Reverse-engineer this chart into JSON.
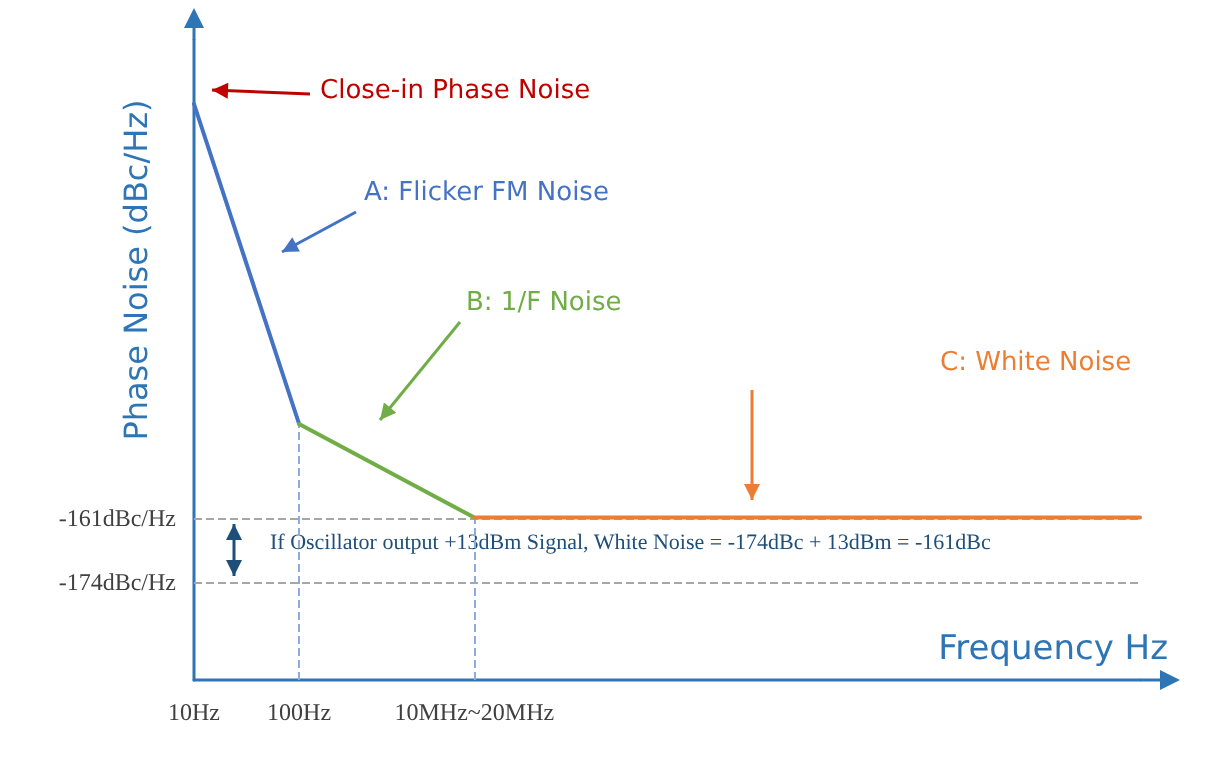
{
  "chart_data": {
    "type": "line",
    "xlabel": "Frequency Hz",
    "ylabel": "Phase Noise (dBc/Hz)",
    "categories": [
      "10Hz",
      null,
      null,
      "100Hz",
      null,
      null,
      null,
      null,
      "10MHz~20MHz",
      null,
      null,
      null,
      null,
      null,
      null,
      null,
      null,
      null,
      null,
      null,
      null,
      null,
      null,
      null,
      null,
      null,
      null,
      null
    ],
    "series": [
      {
        "color": "#4472c4",
        "values": [
          -77,
          null,
          null,
          -142,
          null,
          null,
          null,
          null,
          null,
          null,
          null,
          null,
          null,
          null,
          null,
          null,
          null,
          null,
          null,
          null,
          null,
          null,
          null,
          null,
          null,
          null,
          null,
          null
        ]
      },
      {
        "color": "#70ad47",
        "values": [
          null,
          null,
          null,
          -142,
          null,
          null,
          null,
          null,
          -161,
          null,
          null,
          null,
          null,
          null,
          null,
          null,
          null,
          null,
          null,
          null,
          null,
          null,
          null,
          null,
          null,
          null,
          null,
          null
        ]
      },
      {
        "color": "#ed7d31",
        "values": [
          null,
          null,
          null,
          null,
          null,
          null,
          null,
          null,
          -161,
          null,
          null,
          null,
          null,
          null,
          null,
          null,
          null,
          null,
          null,
          null,
          null,
          null,
          null,
          null,
          null,
          null,
          null,
          -161
        ]
      }
    ],
    "ylim": [
      -194,
      -64
    ],
    "yticks": [
      {
        "value": -161,
        "label": "-161dBc/Hz"
      },
      {
        "value": -174,
        "label": "-174dBc/Hz"
      }
    ],
    "ref_lines": [
      {
        "axis": "y",
        "value": -161,
        "color": "#a6a6a6",
        "line_style": "dashed"
      },
      {
        "axis": "y",
        "value": -174,
        "color": "#a6a6a6",
        "line_style": "dashed"
      },
      {
        "axis": "x",
        "value": "100Hz",
        "color": "#8faadc",
        "line_style": "dashed"
      },
      {
        "axis": "x",
        "value": "10MHz~20MHz",
        "color": "#8faadc",
        "line_style": "dashed"
      }
    ],
    "annotations": [
      "Close-in Phase Noise",
      "A: Flicker FM Noise",
      "B: 1/F Noise",
      "C: White Noise",
      "If Oscillator output +13dBm Signal, White Noise = -174dBc + 13dBm = -161dBc"
    ],
    "marker": "none",
    "line_style": "solid"
  }
}
